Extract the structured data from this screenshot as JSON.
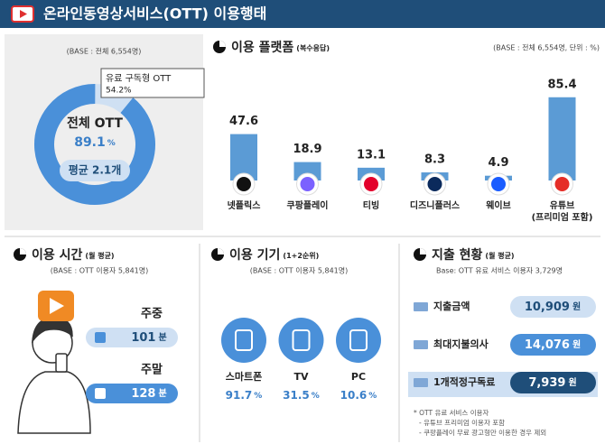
{
  "header": {
    "title": "온라인동영상서비스(OTT) 이용행태"
  },
  "overall": {
    "base": "(BASE : 전체 6,554명)",
    "label": "전체 OTT",
    "value": 89.1,
    "unit": "%",
    "average": "평균 2.1개",
    "callout_label": "유료 구독형 OTT",
    "callout_value": "54.2%"
  },
  "platform": {
    "title": "이용 플랫폼",
    "note": "(복수응답)",
    "base": "(BASE : 전체 6,554명, 단위 : %)",
    "items": [
      {
        "name": "넷플릭스",
        "value": 47.6,
        "color": "#111111"
      },
      {
        "name": "쿠팡플레이",
        "value": 18.9,
        "color": "#7b61ff"
      },
      {
        "name": "티빙",
        "value": 13.1,
        "color": "#e3002b"
      },
      {
        "name": "디즈니플러스",
        "value": 8.3,
        "color": "#0b2a5c"
      },
      {
        "name": "웨이브",
        "value": 4.9,
        "color": "#1a5cff"
      },
      {
        "name": "유튜브",
        "sub": "(프리미엄 포함)",
        "value": 85.4,
        "color": "#e52d27"
      }
    ]
  },
  "usage_time": {
    "title": "이용 시간",
    "note": "(월 평균)",
    "base": "(BASE : OTT 이용자 5,841명)",
    "rows": [
      {
        "label": "주중",
        "value": 101,
        "unit": "분"
      },
      {
        "label": "주말",
        "value": 128,
        "unit": "분"
      }
    ]
  },
  "devices": {
    "title": "이용 기기",
    "note": "(1+2순위)",
    "base": "(BASE : OTT 이용자 5,841명)",
    "items": [
      {
        "name": "스마트폰",
        "value": 91.7,
        "unit": "%"
      },
      {
        "name": "TV",
        "value": 31.5,
        "unit": "%"
      },
      {
        "name": "PC",
        "value": 10.6,
        "unit": "%"
      }
    ]
  },
  "spending": {
    "title": "지출 현황",
    "note": "(월 평균)",
    "base": "Base: OTT 유료 서비스 이용자 3,729명",
    "rows": [
      {
        "label": "지출금액",
        "value": "10,909",
        "unit": "원"
      },
      {
        "label": "최대지불의사",
        "value": "14,076",
        "unit": "원"
      },
      {
        "label": "1개적정구독료",
        "value": "7,939",
        "unit": "원"
      }
    ],
    "footnotes": [
      "* OTT 유료 서비스 이용자",
      "- 유튜브 프리미엄 이용자 포함",
      "- 쿠팡플레이 무료 광고형만 이용한 경우 제외"
    ]
  }
}
